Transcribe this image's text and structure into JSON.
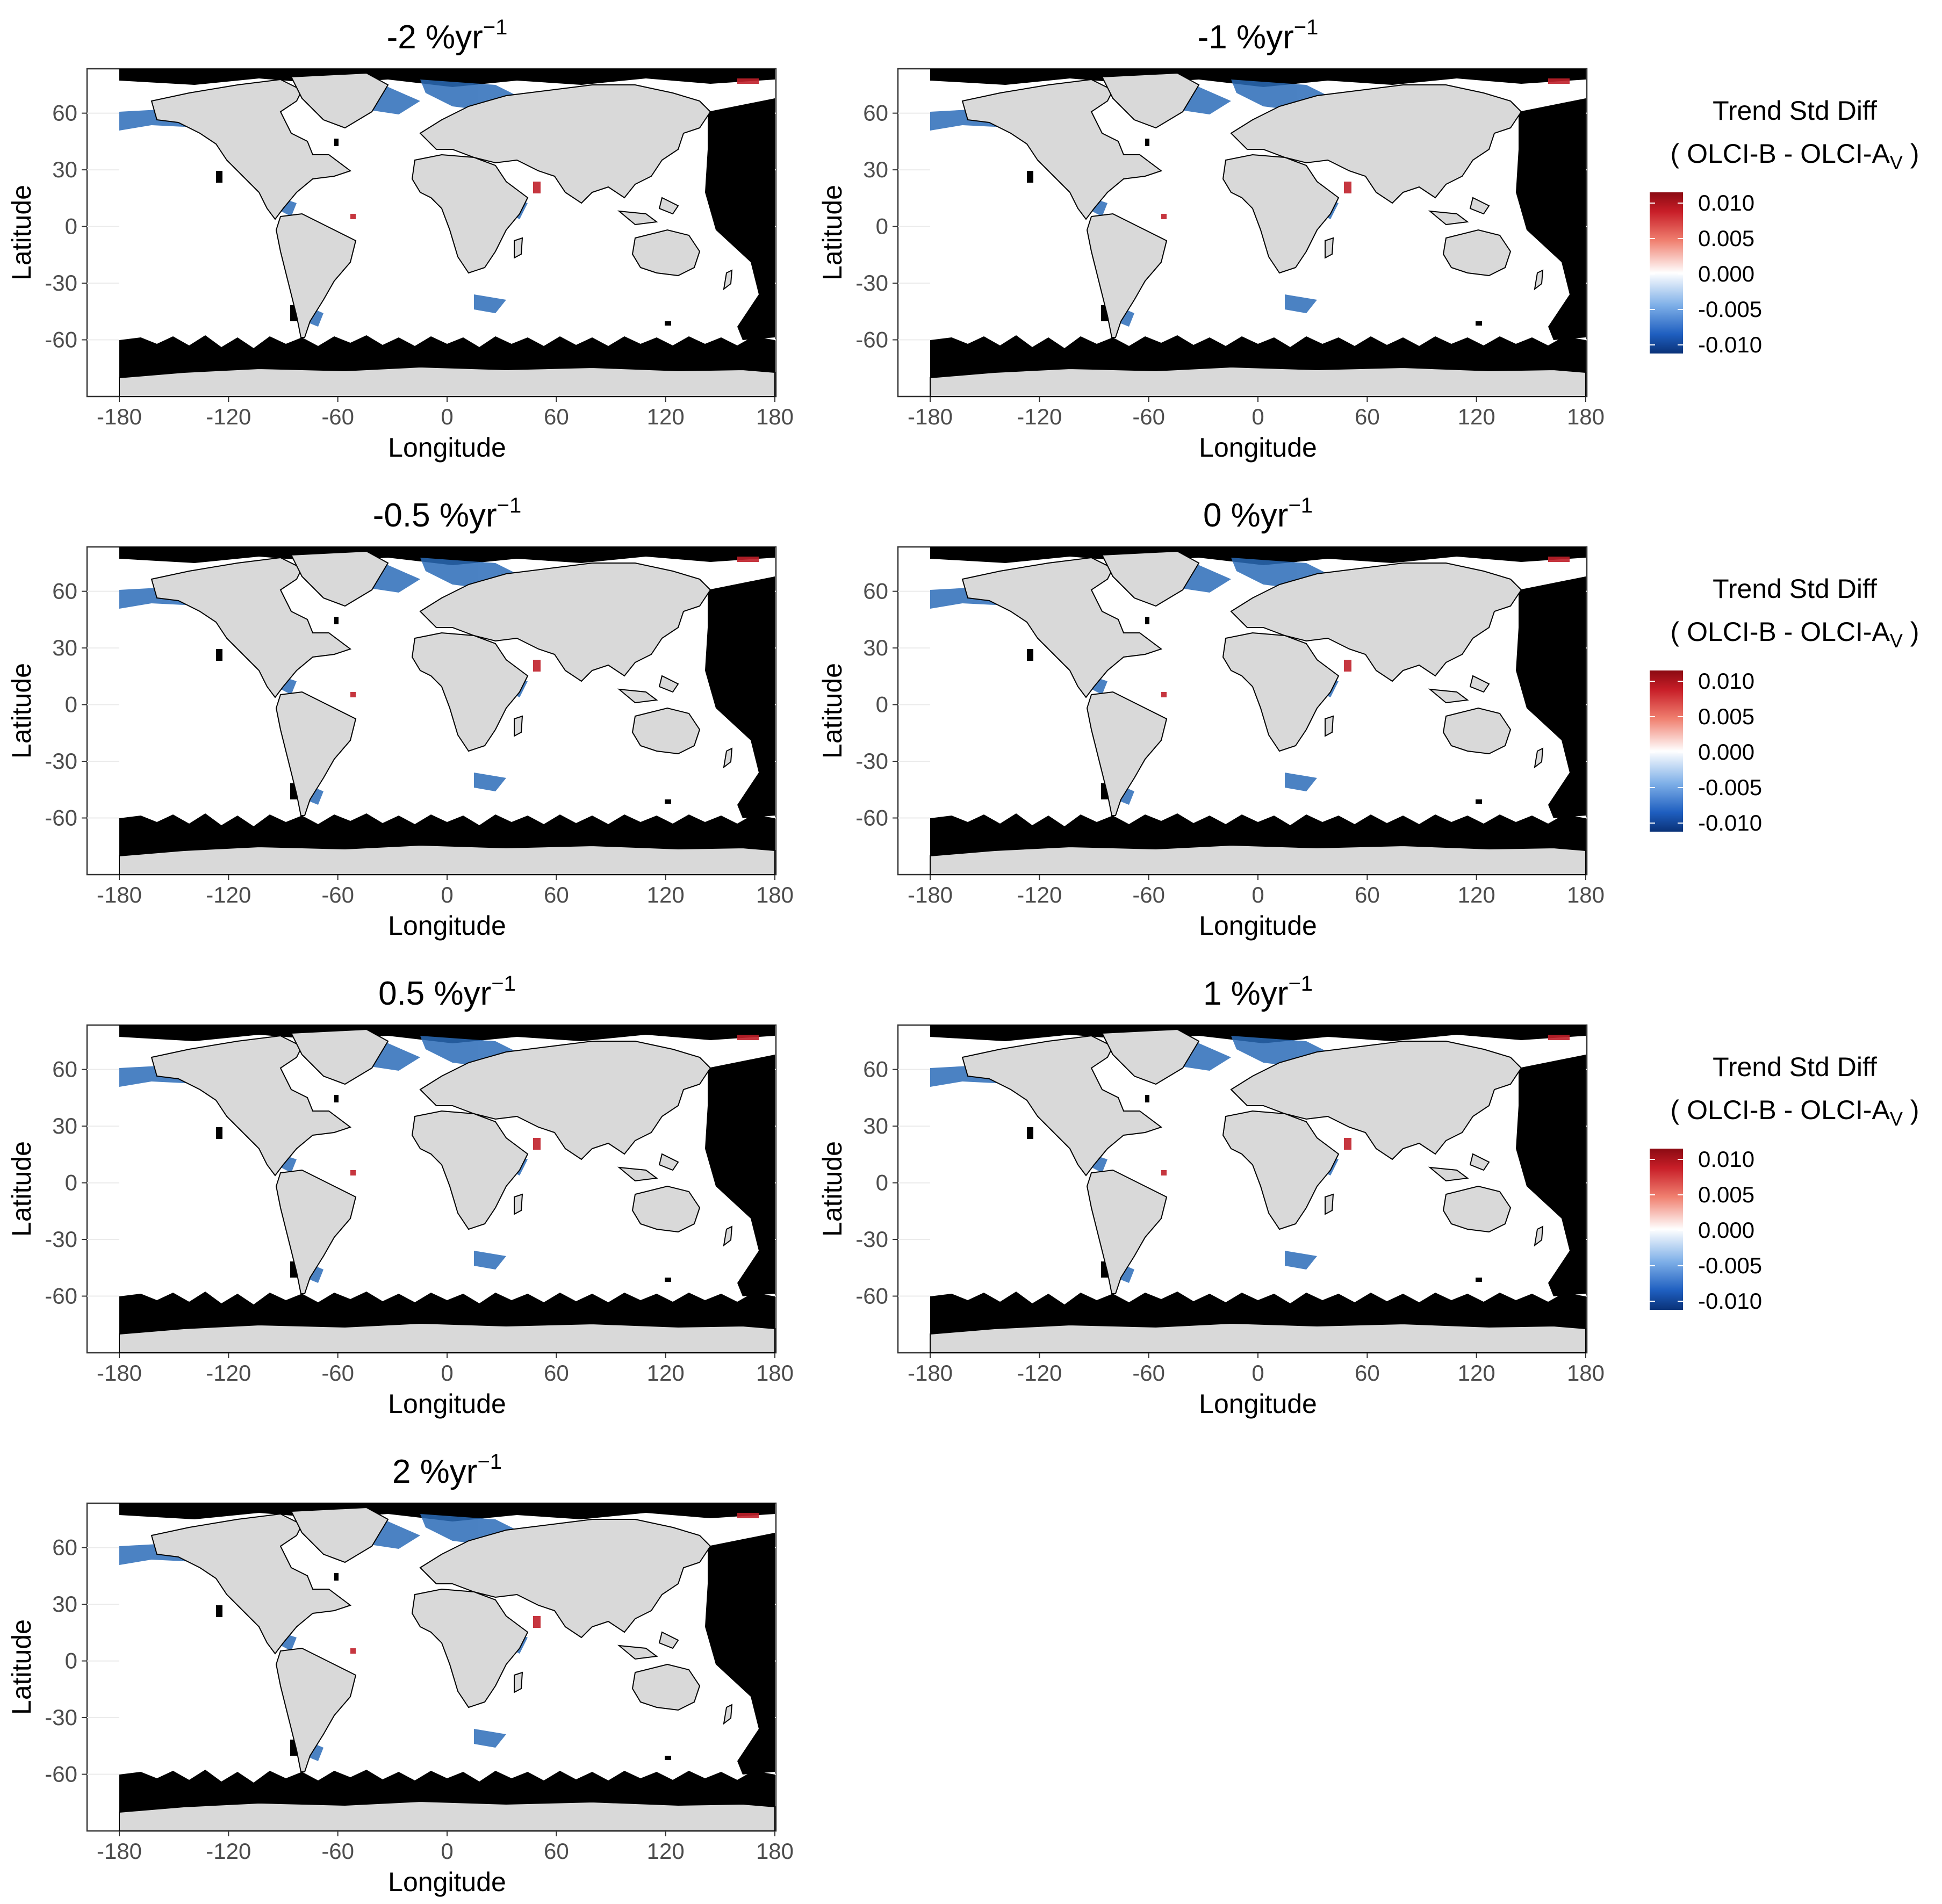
{
  "figure": {
    "x_axis_title": "Longitude",
    "y_axis_title": "Latitude",
    "x_ticks": [
      "-180",
      "-120",
      "-60",
      "0",
      "60",
      "120",
      "180"
    ],
    "y_ticks": [
      "60",
      "30",
      "0",
      "-30",
      "-60"
    ]
  },
  "panels": [
    {
      "title_main": "-2 %yr",
      "title_sup": "−1"
    },
    {
      "title_main": "-1 %yr",
      "title_sup": "−1"
    },
    {
      "title_main": "-0.5 %yr",
      "title_sup": "−1"
    },
    {
      "title_main": "0 %yr",
      "title_sup": "−1"
    },
    {
      "title_main": "0.5 %yr",
      "title_sup": "−1"
    },
    {
      "title_main": "1 %yr",
      "title_sup": "−1"
    },
    {
      "title_main": "2 %yr",
      "title_sup": "−1"
    }
  ],
  "legend": {
    "title": "Trend Std Diff",
    "subtitle_main": "( OLCI-B  - OLCI-A",
    "subtitle_sub": "V",
    "subtitle_end": " )",
    "labels": [
      "0.010",
      "0.005",
      "0.000",
      "-0.005",
      "-0.010"
    ],
    "colors": {
      "high": "#a50f15",
      "mid_high": "#ef3b2c",
      "mid": "#ffffff",
      "mid_low": "#4292c6",
      "low": "#08306b"
    }
  },
  "colors": {
    "land": "#d9d9d9",
    "no_data": "#000000",
    "ocean_near_zero": "#ffffff",
    "coastal_negative": "#2b6cb8",
    "coastal_positive": "#c0202a"
  }
}
